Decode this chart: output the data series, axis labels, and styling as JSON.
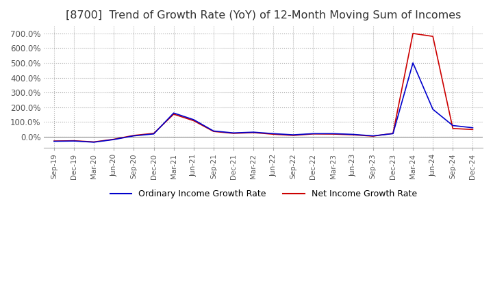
{
  "title": "[8700]  Trend of Growth Rate (YoY) of 12-Month Moving Sum of Incomes",
  "title_fontsize": 11.5,
  "ylim": [
    -75,
    750
  ],
  "yticks": [
    0,
    100,
    200,
    300,
    400,
    500,
    600,
    700
  ],
  "ytick_labels": [
    "0.0%",
    "100.0%",
    "200.0%",
    "300.0%",
    "400.0%",
    "500.0%",
    "600.0%",
    "700.0%"
  ],
  "line_color_ordinary": "#0000CC",
  "line_color_net": "#CC0000",
  "background_color": "#FFFFFF",
  "plot_bg_color": "#FFFFFF",
  "grid_color": "#AAAAAA",
  "legend_labels": [
    "Ordinary Income Growth Rate",
    "Net Income Growth Rate"
  ],
  "dates": [
    "Sep-19",
    "Dec-19",
    "Mar-20",
    "Jun-20",
    "Sep-20",
    "Dec-20",
    "Mar-21",
    "Jun-21",
    "Sep-21",
    "Dec-21",
    "Mar-22",
    "Jun-22",
    "Sep-22",
    "Dec-22",
    "Mar-23",
    "Jun-23",
    "Sep-23",
    "Dec-23",
    "Mar-24",
    "Jun-24",
    "Sep-24",
    "Dec-24"
  ],
  "ordinary_income_growth": [
    -32,
    -30,
    -38,
    -20,
    5,
    18,
    160,
    115,
    38,
    25,
    30,
    20,
    12,
    20,
    20,
    15,
    5,
    20,
    500,
    185,
    75,
    60
  ],
  "net_income_growth": [
    -30,
    -28,
    -36,
    -18,
    8,
    22,
    152,
    108,
    35,
    22,
    27,
    16,
    8,
    18,
    17,
    12,
    3,
    22,
    700,
    680,
    55,
    48
  ]
}
